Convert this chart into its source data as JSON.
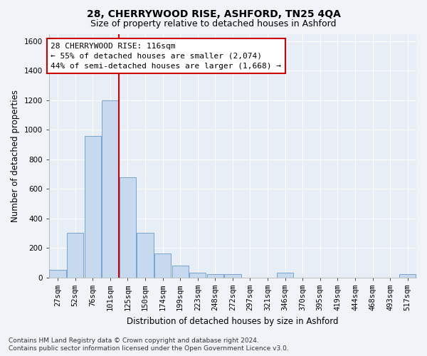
{
  "title": "28, CHERRYWOOD RISE, ASHFORD, TN25 4QA",
  "subtitle": "Size of property relative to detached houses in Ashford",
  "xlabel": "Distribution of detached houses by size in Ashford",
  "ylabel": "Number of detached properties",
  "footer_line1": "Contains HM Land Registry data © Crown copyright and database right 2024.",
  "footer_line2": "Contains public sector information licensed under the Open Government Licence v3.0.",
  "annotation_line1": "28 CHERRYWOOD RISE: 116sqm",
  "annotation_line2": "← 55% of detached houses are smaller (2,074)",
  "annotation_line3": "44% of semi-detached houses are larger (1,668) →",
  "bar_categories": [
    "27sqm",
    "52sqm",
    "76sqm",
    "101sqm",
    "125sqm",
    "150sqm",
    "174sqm",
    "199sqm",
    "223sqm",
    "248sqm",
    "272sqm",
    "297sqm",
    "321sqm",
    "346sqm",
    "370sqm",
    "395sqm",
    "419sqm",
    "444sqm",
    "468sqm",
    "493sqm",
    "517sqm"
  ],
  "bar_values": [
    50,
    300,
    960,
    1200,
    680,
    300,
    160,
    80,
    30,
    20,
    20,
    0,
    0,
    30,
    0,
    0,
    0,
    0,
    0,
    0,
    20
  ],
  "bar_color": "#c6d9ee",
  "bar_edgecolor": "#6699cc",
  "vline_color": "#cc0000",
  "vline_x": 3.5,
  "ylim": [
    0,
    1650
  ],
  "yticks": [
    0,
    200,
    400,
    600,
    800,
    1000,
    1200,
    1400,
    1600
  ],
  "annotation_box_edgecolor": "#cc0000",
  "annotation_box_facecolor": "#ffffff",
  "bg_color": "#f0f4f8",
  "plot_bg_color": "#e8eef5",
  "grid_color": "#ffffff",
  "title_fontsize": 10,
  "subtitle_fontsize": 9,
  "axis_label_fontsize": 8.5,
  "tick_fontsize": 7.5,
  "annotation_fontsize": 8,
  "footer_fontsize": 6.5
}
